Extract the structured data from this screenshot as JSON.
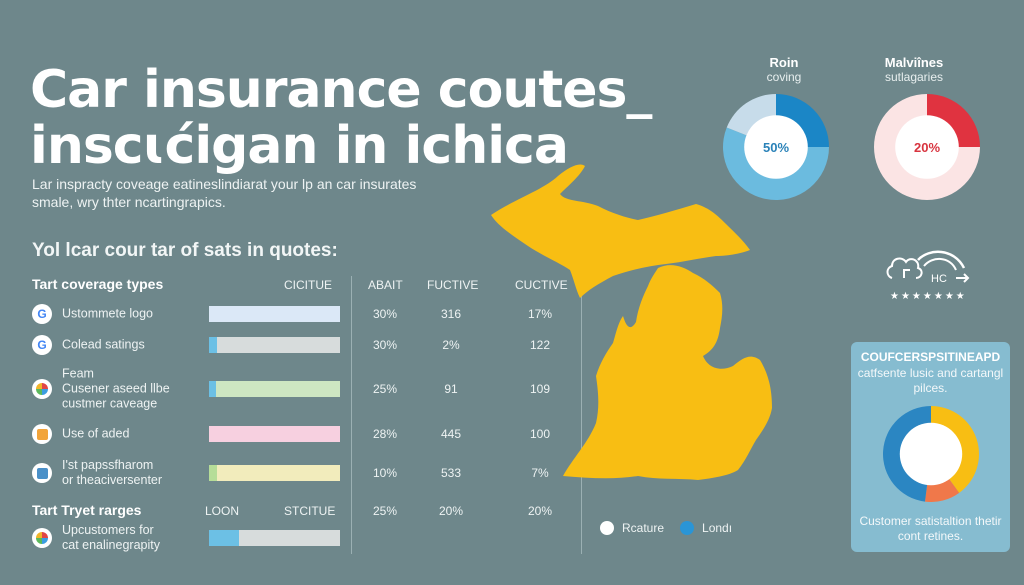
{
  "header": {
    "title_line1": "Car insurance coutes_",
    "title_line2": "inscɩćigan in ichica",
    "subtitle": "Lar inspracty coveage eatineslindiarat your lp an car insurates smale, wry thter ncartingrapics."
  },
  "table": {
    "section_heading": "Yol lcar cour tar of sats in quotes:",
    "group1": {
      "heading": "Tart coverage types",
      "columns": [
        "CICITUE",
        "ABAIT",
        "FUCTIVE",
        "CUCTIVE"
      ],
      "rows": [
        {
          "icon": "google-icon",
          "label": "Ustommete logo",
          "col1": "30%",
          "col2": "316",
          "col3": "17%",
          "bar": [
            {
              "color": "#dbe8f7",
              "pct": 100
            }
          ]
        },
        {
          "icon": "google-icon",
          "label": "Colead satings",
          "col1": "30%",
          "col2": "2%",
          "col3": "122",
          "bar": [
            {
              "color": "#6cc0e5",
              "pct": 6
            },
            {
              "color": "#d7dcdc",
              "pct": 94
            }
          ]
        },
        {
          "icon": "multicolor-logo-icon",
          "label": "Feam\nCusener aseed llbe\ncustmer caveage",
          "col1": "25%",
          "col2": "91",
          "col3": "109",
          "bar": [
            {
              "color": "#6cc0e5",
              "pct": 5
            },
            {
              "color": "#cde6c2",
              "pct": 95
            }
          ]
        },
        {
          "icon": "lock-badge-icon",
          "label": "Use of aded",
          "col1": "28%",
          "col2": "445",
          "col3": "100",
          "bar": [
            {
              "color": "#f7d0e0",
              "pct": 100
            }
          ]
        },
        {
          "icon": "document-icon",
          "label": "I'st papssfharom\nor theaciversenter",
          "col1": "10%",
          "col2": "533",
          "col3": "7%",
          "bar": [
            {
              "color": "#b6dd98",
              "pct": 6
            },
            {
              "color": "#f2ecbc",
              "pct": 94
            }
          ]
        }
      ]
    },
    "group2": {
      "heading": "Tart Tryet rarges",
      "columns": [
        "LOON",
        "STCITUE"
      ],
      "values": [
        "25%",
        "20%",
        "20%"
      ],
      "rows": [
        {
          "icon": "multicolor-logo-icon",
          "label": "Upcustomers for\ncat enalinegrapity",
          "bar": [
            {
              "color": "#6cc0e5",
              "pct": 23
            },
            {
              "color": "#d7dcdc",
              "pct": 77
            }
          ]
        }
      ]
    }
  },
  "map": {
    "region": "Michigan",
    "fill_color": "#f8be13",
    "legend": [
      {
        "label": "Rcature",
        "color": "#ffffff"
      },
      {
        "label": "Londı",
        "color": "#2a95d6"
      }
    ]
  },
  "donuts": [
    {
      "title": "Roin",
      "subtitle": "coving",
      "value": "50%",
      "value_color": "#2a82b8",
      "segments": [
        {
          "color": "#1b86c6",
          "pct": 25
        },
        {
          "color": "#6bbbdf",
          "pct": 56
        },
        {
          "color": "#c7dcea",
          "pct": 19
        }
      ]
    },
    {
      "title": "Malviînes",
      "subtitle": "sutlagaries",
      "value": "20%",
      "value_color": "#d8343f",
      "segments": [
        {
          "color": "#e03340",
          "pct": 25
        },
        {
          "color": "#fbe4e4",
          "pct": 75
        }
      ]
    }
  ],
  "rating": {
    "icon_text": "HC",
    "stars": "★★★★★★★"
  },
  "card": {
    "heading": "COUFCERSPSITINEAPD",
    "subtitle": "catfsente lusic and cartangl pilces.",
    "footer": "Customer satistaltion thetir cont retines.",
    "segments": [
      {
        "color": "#f8be13",
        "pct": 40
      },
      {
        "color": "#f0784a",
        "pct": 12
      },
      {
        "color": "#2b86c2",
        "pct": 48
      }
    ]
  }
}
